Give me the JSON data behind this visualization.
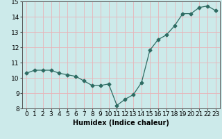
{
  "x": [
    0,
    1,
    2,
    3,
    4,
    5,
    6,
    7,
    8,
    9,
    10,
    11,
    12,
    13,
    14,
    15,
    16,
    17,
    18,
    19,
    20,
    21,
    22,
    23
  ],
  "y": [
    10.3,
    10.5,
    10.5,
    10.5,
    10.3,
    10.2,
    10.1,
    9.8,
    9.5,
    9.5,
    9.6,
    8.2,
    8.6,
    8.9,
    9.7,
    11.8,
    12.5,
    12.8,
    13.4,
    14.2,
    14.2,
    14.6,
    14.7,
    14.4
  ],
  "xlabel": "Humidex (Indice chaleur)",
  "ylim": [
    8,
    15
  ],
  "xlim_min": -0.5,
  "xlim_max": 23.5,
  "yticks": [
    8,
    9,
    10,
    11,
    12,
    13,
    14,
    15
  ],
  "xticks": [
    0,
    1,
    2,
    3,
    4,
    5,
    6,
    7,
    8,
    9,
    10,
    11,
    12,
    13,
    14,
    15,
    16,
    17,
    18,
    19,
    20,
    21,
    22,
    23
  ],
  "xtick_labels": [
    "0",
    "1",
    "2",
    "3",
    "4",
    "5",
    "6",
    "7",
    "8",
    "9",
    "10",
    "11",
    "12",
    "13",
    "14",
    "15",
    "16",
    "17",
    "18",
    "19",
    "20",
    "21",
    "22",
    "23"
  ],
  "line_color": "#2d6b62",
  "marker": "D",
  "marker_size": 2.5,
  "background_color": "#cceaea",
  "grid_color": "#e8b4b8",
  "xlabel_fontsize": 7,
  "tick_fontsize": 6.5,
  "xlabel_fontweight": "bold"
}
